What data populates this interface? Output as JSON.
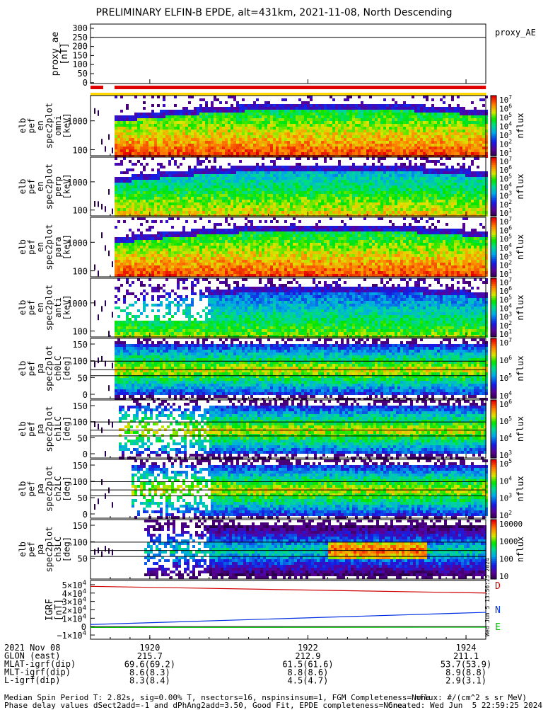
{
  "title": "PRELIMINARY ELFIN-B EPDE, alt=431km, 2021-11-08, North Descending",
  "proxy_ae": {
    "ylabel": [
      "proxy_ae",
      "[nT]"
    ],
    "yticks": [
      "300",
      "250",
      "200",
      "150",
      "100",
      "50",
      "0"
    ],
    "legend": "proxy_AE",
    "line_value": 250
  },
  "chart_data": [
    {
      "type": "heatmap",
      "ylabel": [
        "elb",
        "pef",
        "en",
        "spec2plot",
        "omni",
        "[keV]"
      ],
      "yticks": [
        "1000",
        "100"
      ],
      "zlabel": "nflux",
      "zticks": [
        "10^7",
        "10^6",
        "10^5",
        "10^4",
        "10^3",
        "10^2",
        "10^1"
      ],
      "zsupers": [
        "7",
        "6",
        "5",
        "4",
        "3",
        "2",
        "1"
      ]
    },
    {
      "type": "heatmap",
      "ylabel": [
        "elb",
        "pef",
        "en",
        "spec2plot",
        "perp",
        "[keV]"
      ],
      "yticks": [
        "1000",
        "100"
      ],
      "zlabel": "nflux",
      "zticks": [
        "10^7",
        "10^6",
        "10^5",
        "10^4",
        "10^3",
        "10^2",
        "10^1"
      ],
      "zsupers": [
        "7",
        "6",
        "5",
        "4",
        "3",
        "2",
        "1"
      ]
    },
    {
      "type": "heatmap",
      "ylabel": [
        "elb",
        "pef",
        "en",
        "spec2plot",
        "para",
        "[keV]"
      ],
      "yticks": [
        "1000",
        "100"
      ],
      "zlabel": "nflux",
      "zticks": [
        "10^7",
        "10^6",
        "10^5",
        "10^4",
        "10^3",
        "10^2",
        "10^1"
      ],
      "zsupers": [
        "7",
        "6",
        "5",
        "4",
        "3",
        "2",
        "1"
      ]
    },
    {
      "type": "heatmap",
      "ylabel": [
        "elb",
        "pef",
        "en",
        "spec2plot",
        "anti",
        "[keV]"
      ],
      "yticks": [
        "1000",
        "100"
      ],
      "zlabel": "nflux",
      "zticks": [
        "10^7",
        "10^6",
        "10^5",
        "10^4",
        "10^3",
        "10^2",
        "10^1"
      ],
      "zsupers": [
        "7",
        "6",
        "5",
        "4",
        "3",
        "2",
        "1"
      ]
    },
    {
      "type": "heatmap",
      "ylabel": [
        "elb",
        "pef",
        "pa",
        "spec2plot",
        "ch0LC",
        "[deg]"
      ],
      "yticks": [
        "150",
        "100",
        "50",
        "0"
      ],
      "zlabel": "nflux",
      "zticks": [
        "10^7",
        "10^6",
        "10^5",
        "10^4"
      ],
      "zsupers": [
        "7",
        "6",
        "5",
        "4"
      ]
    },
    {
      "type": "heatmap",
      "ylabel": [
        "elb",
        "pef",
        "pa",
        "spec2plot",
        "ch1LC",
        "[deg]"
      ],
      "yticks": [
        "150",
        "100",
        "50",
        "0"
      ],
      "zlabel": "nflux",
      "zticks": [
        "10^6",
        "10^5",
        "10^4",
        "10^3"
      ],
      "zsupers": [
        "6",
        "5",
        "4",
        "3"
      ]
    },
    {
      "type": "heatmap",
      "ylabel": [
        "elb",
        "pef",
        "pa",
        "spec2plot",
        "ch2LC",
        "[deg]"
      ],
      "yticks": [
        "150",
        "100",
        "50",
        "0"
      ],
      "zlabel": "nflux",
      "zticks": [
        "10^5",
        "10^4",
        "10^3",
        "10^2"
      ],
      "zsupers": [
        "5",
        "4",
        "3",
        "2"
      ]
    },
    {
      "type": "heatmap",
      "ylabel": [
        "elb",
        "pef",
        "pa",
        "spec2plot",
        "ch3LC",
        "[deg]"
      ],
      "yticks": [
        "150",
        "100",
        "50"
      ],
      "zlabel": "nflux",
      "zticks": [
        "10000",
        "1000",
        "100",
        "10"
      ],
      "zsupers": [
        "",
        "",
        "",
        ""
      ]
    },
    {
      "type": "line",
      "ylabel": [
        "IGRF",
        "[nT]"
      ],
      "yticks": [
        "5×10^4",
        "4×10^4",
        "3×10^4",
        "2×10^4",
        "1×10^4",
        "0",
        "−1×10^4"
      ],
      "ylim": [
        -15000,
        55000
      ],
      "series": [
        {
          "name": "D",
          "color": "#d00000",
          "x": [
            0,
            1
          ],
          "y": [
            48000,
            40000
          ]
        },
        {
          "name": "N",
          "color": "#0030e0",
          "x": [
            0,
            1
          ],
          "y": [
            2500,
            17000
          ]
        },
        {
          "name": "E",
          "color": "#00c000",
          "x": [
            0,
            1
          ],
          "y": [
            -1000,
            -700
          ]
        }
      ],
      "vertical_label": "Wed Jun 5 13:56:25 2024"
    }
  ],
  "xaxis": {
    "row_labels": [
      "2021 Nov 08",
      "GLON (east)",
      "MLAT-igrf(dip)",
      "MLT-igrf(dip)",
      "L-igrf(dip)"
    ],
    "columns": [
      {
        "time": "1920",
        "values": [
          "215.7",
          "69.6(69.2)",
          "8.6(8.3)",
          "8.3(8.4)"
        ]
      },
      {
        "time": "1922",
        "values": [
          "212.9",
          "61.5(61.6)",
          "8.8(8.6)",
          "4.5(4.7)"
        ]
      },
      {
        "time": "1924",
        "values": [
          "211.1",
          "53.7(53.9)",
          "8.9(8.8)",
          "2.9(3.1)"
        ]
      }
    ]
  },
  "footer": {
    "left1": "Median Spin Period T: 2.82s, sig=0.00% T, nsectors=16, nspinsinsum=1, FGM Completeness=None",
    "left2": "Phase delay values dSect2add=-1 and dPhAng2add=3.50, Good Fit, EPDE completeness=None",
    "right1": "nflux: #/(cm^2 s sr MeV)",
    "right2": "Created: Wed Jun  5 22:59:25 2024"
  },
  "colors": {
    "bar_red": "#e00000",
    "bar_yellow": "#ffd800",
    "axis": "#000000"
  }
}
